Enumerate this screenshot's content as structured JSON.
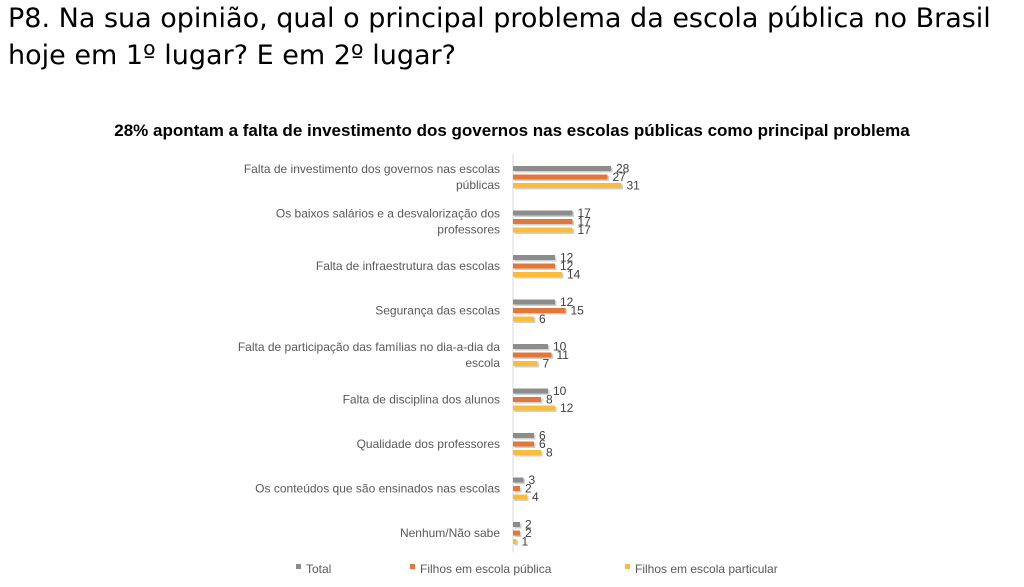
{
  "question": "P8. Na sua opinião,  qual o principal problema da escola pública no Brasil hoje em 1º lugar? E em 2º lugar?",
  "chart_data": {
    "type": "bar",
    "orientation": "horizontal",
    "title": "28% apontam a falta de investimento dos governos nas escolas públicas como principal problema",
    "categories": [
      [
        "Falta de investimento dos governos nas escolas",
        "públicas"
      ],
      [
        "Os baixos salários e a desvalorização dos",
        "professores"
      ],
      [
        "Falta de infraestrutura das escolas"
      ],
      [
        "Segurança das escolas"
      ],
      [
        "Falta de participação das famílias no dia-a-dia da",
        "escola"
      ],
      [
        "Falta de disciplina dos alunos"
      ],
      [
        "Qualidade dos professores"
      ],
      [
        "Os conteúdos que são ensinados nas escolas"
      ],
      [
        "Nenhum/Não sabe"
      ]
    ],
    "series": [
      {
        "name": "Total",
        "color": "#8c8c8c",
        "values": [
          28,
          17,
          12,
          12,
          10,
          10,
          6,
          3,
          2
        ]
      },
      {
        "name": "Filhos em escola pública",
        "color": "#e0783a",
        "values": [
          27,
          17,
          12,
          15,
          11,
          8,
          6,
          2,
          2
        ]
      },
      {
        "name": "Filhos em escola particular",
        "color": "#f9bc3c",
        "values": [
          31,
          17,
          14,
          6,
          7,
          12,
          8,
          4,
          1
        ]
      }
    ],
    "xlim": [
      0,
      35
    ],
    "legend": "bottom"
  }
}
